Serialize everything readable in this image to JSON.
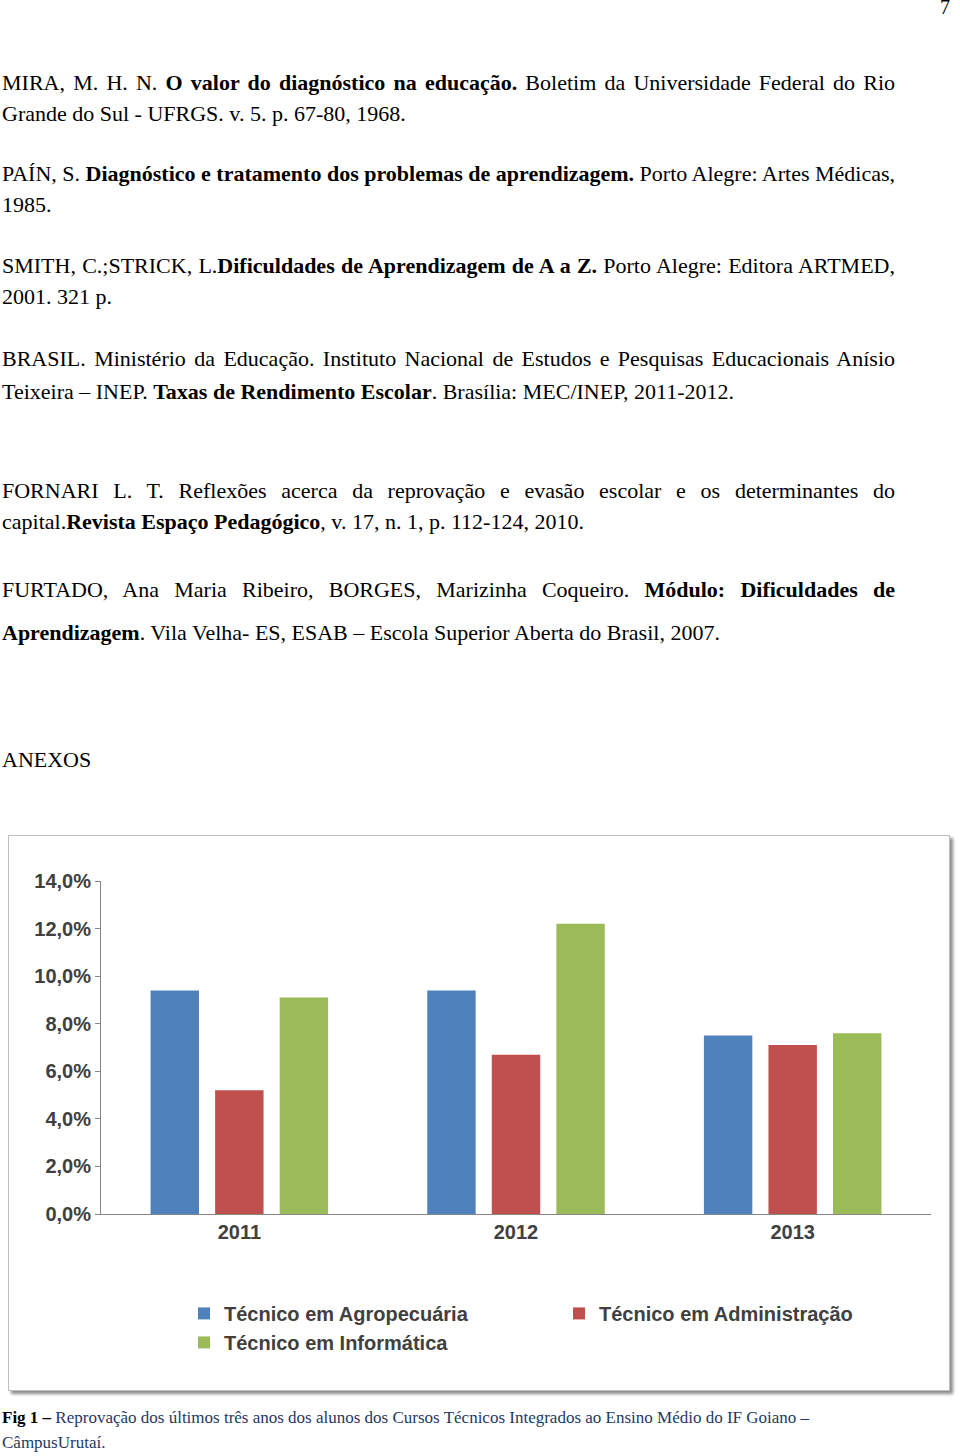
{
  "page_number": "7",
  "references": [
    [
      {
        "text": "MIRA, M. H. N. "
      },
      {
        "text": "O valor do diagnóstico na educação.",
        "bold": true
      },
      {
        "text": " Boletim da Universidade Federal do Rio Grande do Sul - UFRGS. v. 5. p. 67-80, 1968."
      }
    ],
    [
      {
        "text": "PAÍN, S. "
      },
      {
        "text": "Diagnóstico e tratamento dos problemas de aprendizagem.",
        "bold": true
      },
      {
        "text": " Porto Alegre: Artes Médicas, 1985."
      }
    ],
    [
      {
        "text": "SMITH, C.;STRICK, L."
      },
      {
        "text": "Dificuldades de Aprendizagem de A a Z.",
        "bold": true
      },
      {
        "text": " Porto Alegre: Editora ARTMED, 2001. 321 p."
      }
    ],
    [
      {
        "text": "BRASIL. Ministério da Educação. Instituto Nacional de Estudos e Pesquisas Educacionais Anísio Teixeira – INEP. "
      },
      {
        "text": "Taxas de Rendimento Escolar",
        "bold": true
      },
      {
        "text": ". Brasília: MEC/INEP, 2011-2012."
      }
    ],
    [
      {
        "text": "FORNARI L. T. Reflexões acerca da reprovação e evasão escolar e os determinantes do capital."
      },
      {
        "text": "Revista Espaço Pedagógico",
        "bold": true
      },
      {
        "text": ", v. 17, n. 1, p. 112-124, 2010."
      }
    ],
    [
      {
        "text": "FURTADO, Ana Maria Ribeiro, BORGES, Marizinha Coqueiro. "
      },
      {
        "text": "Módulo: Dificuldades de Aprendizagem",
        "bold": true
      },
      {
        "text": ". Vila Velha- ES, ESAB – Escola Superior Aberta do Brasil, 2007."
      }
    ]
  ],
  "annex_heading": "ANEXOS",
  "chart_data": {
    "type": "bar",
    "categories": [
      "2011",
      "2012",
      "2013"
    ],
    "series": [
      {
        "name": "Técnico em Agropecuária",
        "color": "#4f81bd",
        "values": [
          9.4,
          9.4,
          7.5
        ]
      },
      {
        "name": "Técnico em Administração",
        "color": "#c0504d",
        "values": [
          5.2,
          6.7,
          7.1
        ]
      },
      {
        "name": "Técnico em Informática",
        "color": "#9bbb59",
        "values": [
          9.1,
          12.2,
          7.6
        ]
      }
    ],
    "ylim": [
      0,
      14
    ],
    "yticks": [
      {
        "value": 0,
        "label": "0,0%"
      },
      {
        "value": 2,
        "label": "2,0%"
      },
      {
        "value": 4,
        "label": "4,0%"
      },
      {
        "value": 6,
        "label": "6,0%"
      },
      {
        "value": 8,
        "label": "8,0%"
      },
      {
        "value": 10,
        "label": "10,0%"
      },
      {
        "value": 12,
        "label": "12,0%"
      },
      {
        "value": 14,
        "label": "14,0%"
      }
    ],
    "grid": false,
    "legend": "bottom"
  },
  "caption": [
    {
      "text": "Fig 1 –",
      "bold": true
    },
    {
      "text": " Reprovação dos últimos três anos dos alunos dos Cursos Técnicos Integrados ao Ensino Médio do IF Goiano – CâmpusUrutaí."
    }
  ]
}
